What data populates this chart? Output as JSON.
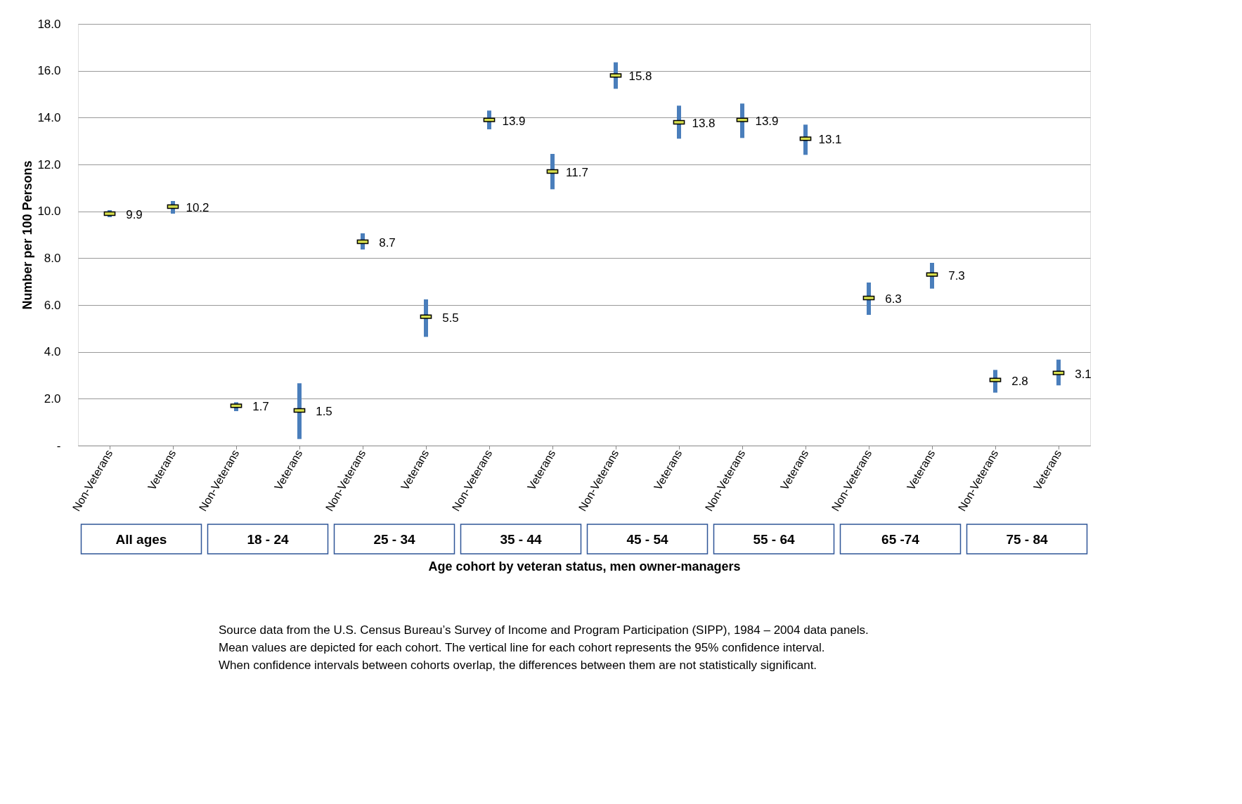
{
  "chart_data": {
    "type": "scatter",
    "xlabel": "Age cohort by veteran status, men owner-managers",
    "ylabel": "Number per 100 Persons",
    "categories": [
      "Non-Veterans",
      "Veterans",
      "Non-Veterans",
      "Veterans",
      "Non-Veterans",
      "Veterans",
      "Non-Veterans",
      "Veterans",
      "Non-Veterans",
      "Veterans",
      "Non-Veterans",
      "Veterans",
      "Non-Veterans",
      "Veterans",
      "Non-Veterans",
      "Veterans"
    ],
    "series": [
      {
        "color": "#d6df4f",
        "values": [
          9.9,
          10.2,
          1.7,
          1.5,
          8.7,
          5.5,
          13.9,
          11.7,
          15.8,
          13.8,
          13.9,
          13.1,
          6.3,
          7.3,
          2.8,
          3.1
        ],
        "errors": [
          [
            9.75,
            10.05
          ],
          [
            9.9,
            10.44
          ],
          [
            1.47,
            1.85
          ],
          [
            0.28,
            2.66
          ],
          [
            8.37,
            9.06
          ],
          [
            4.64,
            6.24
          ],
          [
            13.5,
            14.3
          ],
          [
            10.94,
            12.45
          ],
          [
            15.23,
            16.36
          ],
          [
            13.1,
            14.51
          ],
          [
            13.13,
            14.6
          ],
          [
            12.41,
            13.7
          ],
          [
            5.58,
            6.96
          ],
          [
            6.7,
            7.8
          ],
          [
            2.26,
            3.23
          ],
          [
            2.57,
            3.67
          ]
        ]
      }
    ],
    "ylim": [
      0,
      18
    ],
    "yticks": [
      {
        "value": 0,
        "label": "-"
      },
      {
        "value": 2,
        "label": "2.0"
      },
      {
        "value": 4,
        "label": "4.0"
      },
      {
        "value": 6,
        "label": "6.0"
      },
      {
        "value": 8,
        "label": "8.0"
      },
      {
        "value": 10,
        "label": "10.0"
      },
      {
        "value": 12,
        "label": "12.0"
      },
      {
        "value": 14,
        "label": "14.0"
      },
      {
        "value": 16,
        "label": "16.0"
      },
      {
        "value": 18,
        "label": "18.0"
      }
    ],
    "grid": "y",
    "marker": "square",
    "data_labels": true,
    "annotations": [
      "All ages",
      "18 - 24",
      "25 - 34",
      "35 - 44",
      "45 - 54",
      "55 - 64",
      "65 -74",
      "75 - 84",
      "Source data from the U.S. Census Bureau’s Survey of Income and Program Participation (SIPP), 1984 – 2004 data panels. Mean values are depicted for each cohort.  The vertical line for each cohort represents the 95% confidence interval. When confidence intervals between cohorts overlap, the differences between them are not statistically significant."
    ]
  }
}
